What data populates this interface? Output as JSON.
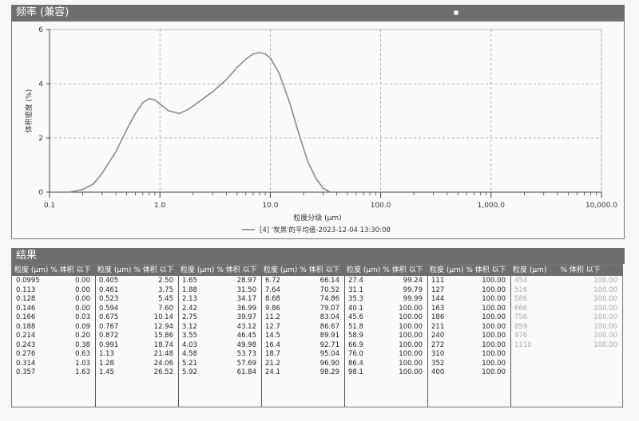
{
  "frequency_panel": {
    "title": "频率 (兼容)"
  },
  "chart_data": {
    "type": "line",
    "title": "",
    "xlabel": "粒度分级 (µm)",
    "ylabel": "体积密度 (%)",
    "x_scale": "log",
    "xlim": [
      0.1,
      10000
    ],
    "ylim": [
      0,
      6
    ],
    "x_ticks": [
      {
        "value": 0.1,
        "label": "0.1"
      },
      {
        "value": 1,
        "label": "1.0"
      },
      {
        "value": 10,
        "label": "10.0"
      },
      {
        "value": 100,
        "label": "100.0"
      },
      {
        "value": 1000,
        "label": "1,000.0"
      },
      {
        "value": 10000,
        "label": "10,000.0"
      }
    ],
    "y_ticks": [
      {
        "value": 0,
        "label": "0"
      },
      {
        "value": 2,
        "label": "2"
      },
      {
        "value": 4,
        "label": "4"
      },
      {
        "value": 6,
        "label": "6"
      }
    ],
    "grid": true,
    "legend_position": "bottom-center",
    "series": [
      {
        "name": "[4] '炭黑'的平均值-2023-12-04 13:30:08",
        "color": "#8a8a8a",
        "x": [
          0.15,
          0.2,
          0.25,
          0.3,
          0.4,
          0.5,
          0.6,
          0.7,
          0.8,
          0.9,
          1.0,
          1.2,
          1.5,
          1.8,
          2.2,
          3.0,
          4.0,
          5.0,
          6.0,
          7.0,
          8.0,
          9.0,
          10.0,
          12.0,
          15.0,
          18.0,
          22.0,
          26.0,
          30.0,
          35.0
        ],
        "y": [
          0.0,
          0.1,
          0.3,
          0.7,
          1.5,
          2.3,
          2.9,
          3.3,
          3.45,
          3.4,
          3.25,
          3.0,
          2.9,
          3.05,
          3.3,
          3.7,
          4.15,
          4.6,
          4.9,
          5.1,
          5.15,
          5.1,
          4.95,
          4.4,
          3.3,
          2.2,
          1.1,
          0.5,
          0.15,
          0.0
        ]
      }
    ]
  },
  "results": {
    "title": "结果",
    "col_size": "粒度 (µm)",
    "col_pct": "% 体积 以下",
    "groups": [
      {
        "rows": [
          [
            "0.0995",
            "0.00"
          ],
          [
            "0.113",
            "0.00"
          ],
          [
            "0.128",
            "0.00"
          ],
          [
            "0.146",
            "0.00"
          ],
          [
            "0.166",
            "0.03"
          ],
          [
            "0.188",
            "0.09"
          ],
          [
            "0.214",
            "0.20"
          ],
          [
            "0.243",
            "0.38"
          ],
          [
            "0.276",
            "0.63"
          ],
          [
            "0.314",
            "1.03"
          ],
          [
            "0.357",
            "1.63"
          ]
        ]
      },
      {
        "rows": [
          [
            "0.405",
            "2.50"
          ],
          [
            "0.461",
            "3.75"
          ],
          [
            "0.523",
            "5.45"
          ],
          [
            "0.594",
            "7.60"
          ],
          [
            "0.675",
            "10.14"
          ],
          [
            "0.767",
            "12.94"
          ],
          [
            "0.872",
            "15.86"
          ],
          [
            "0.991",
            "18.74"
          ],
          [
            "1.13",
            "21.48"
          ],
          [
            "1.28",
            "24.06"
          ],
          [
            "1.45",
            "26.52"
          ]
        ]
      },
      {
        "rows": [
          [
            "1.65",
            "28.97"
          ],
          [
            "1.88",
            "31.50"
          ],
          [
            "2.13",
            "34.17"
          ],
          [
            "2.42",
            "36.99"
          ],
          [
            "2.75",
            "39.97"
          ],
          [
            "3.12",
            "43.12"
          ],
          [
            "3.55",
            "46.45"
          ],
          [
            "4.03",
            "49.98"
          ],
          [
            "4.58",
            "53.73"
          ],
          [
            "5.21",
            "57.69"
          ],
          [
            "5.92",
            "61.84"
          ]
        ]
      },
      {
        "rows": [
          [
            "6.72",
            "66.14"
          ],
          [
            "7.64",
            "70.52"
          ],
          [
            "8.68",
            "74.86"
          ],
          [
            "9.86",
            "79.07"
          ],
          [
            "11.2",
            "83.04"
          ],
          [
            "12.7",
            "86.67"
          ],
          [
            "14.5",
            "89.91"
          ],
          [
            "16.4",
            "92.71"
          ],
          [
            "18.7",
            "95.04"
          ],
          [
            "21.2",
            "96.90"
          ],
          [
            "24.1",
            "98.29"
          ]
        ]
      },
      {
        "rows": [
          [
            "27.4",
            "99.24"
          ],
          [
            "31.1",
            "99.79"
          ],
          [
            "35.3",
            "99.99"
          ],
          [
            "40.1",
            "100.00"
          ],
          [
            "45.6",
            "100.00"
          ],
          [
            "51.8",
            "100.00"
          ],
          [
            "58.9",
            "100.00"
          ],
          [
            "66.9",
            "100.00"
          ],
          [
            "76.0",
            "100.00"
          ],
          [
            "86.4",
            "100.00"
          ],
          [
            "98.1",
            "100.00"
          ]
        ]
      },
      {
        "rows": [
          [
            "111",
            "100.00"
          ],
          [
            "127",
            "100.00"
          ],
          [
            "144",
            "100.00"
          ],
          [
            "163",
            "100.00"
          ],
          [
            "186",
            "100.00"
          ],
          [
            "211",
            "100.00"
          ],
          [
            "240",
            "100.00"
          ],
          [
            "272",
            "100.00"
          ],
          [
            "310",
            "100.00"
          ],
          [
            "352",
            "100.00"
          ],
          [
            "400",
            "100.00"
          ]
        ]
      },
      {
        "rows": [
          [
            "454",
            "100.00"
          ],
          [
            "516",
            "100.00"
          ],
          [
            "586",
            "100.00"
          ],
          [
            "666",
            "100.00"
          ],
          [
            "756",
            "100.00"
          ],
          [
            "859",
            "100.00"
          ],
          [
            "976",
            "100.00"
          ],
          [
            "1110",
            "100.00"
          ]
        ]
      }
    ]
  }
}
